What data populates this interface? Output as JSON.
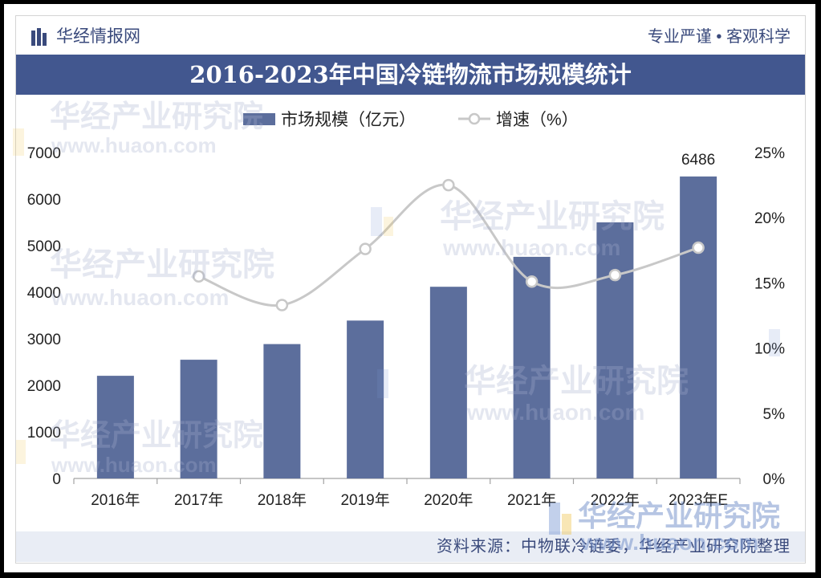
{
  "header": {
    "brand": "华经情报网",
    "slogan": "专业严谨 • 客观科学"
  },
  "title": "2016-2023年中国冷链物流市场规模统计",
  "chart_data": {
    "type": "bar",
    "categories": [
      "2016年",
      "2017年",
      "2018年",
      "2019年",
      "2020年",
      "2021年",
      "2022年",
      "2023年E"
    ],
    "series": [
      {
        "name": "市场规模（亿元）",
        "type": "bar",
        "axis": "left",
        "values": [
          2205,
          2550,
          2886,
          3391,
          4117,
          4760,
          5500,
          6486
        ],
        "labels": [
          null,
          null,
          null,
          null,
          null,
          null,
          null,
          "6486"
        ]
      },
      {
        "name": "增速（%）",
        "type": "line",
        "smooth": true,
        "axis": "right",
        "values": [
          null,
          15.5,
          13.3,
          17.6,
          22.5,
          15.1,
          15.6,
          17.7
        ]
      }
    ],
    "y_left": {
      "ticks": [
        "0",
        "1000",
        "2000",
        "3000",
        "4000",
        "5000",
        "6000",
        "7000"
      ],
      "lim": [
        0,
        7000
      ]
    },
    "y_right": {
      "ticks": [
        "0%",
        "5%",
        "10%",
        "15%",
        "20%",
        "25%"
      ],
      "lim": [
        0,
        25
      ]
    },
    "grid": false,
    "legend_position": "top"
  },
  "footer": {
    "source": "资料来源：中物联冷链委，华经产业研究院整理"
  },
  "watermark": {
    "brand": "华经产业研究院",
    "url": "www.huaon.com"
  },
  "colors": {
    "title_bar": "#42578f",
    "bar": "#5c6e9c",
    "line": "#c8c8c8",
    "marker_fill": "#ffffff",
    "footer_band": "#e9edf5",
    "brand_text": "#3a4a7c",
    "axis_text": "#222222"
  }
}
